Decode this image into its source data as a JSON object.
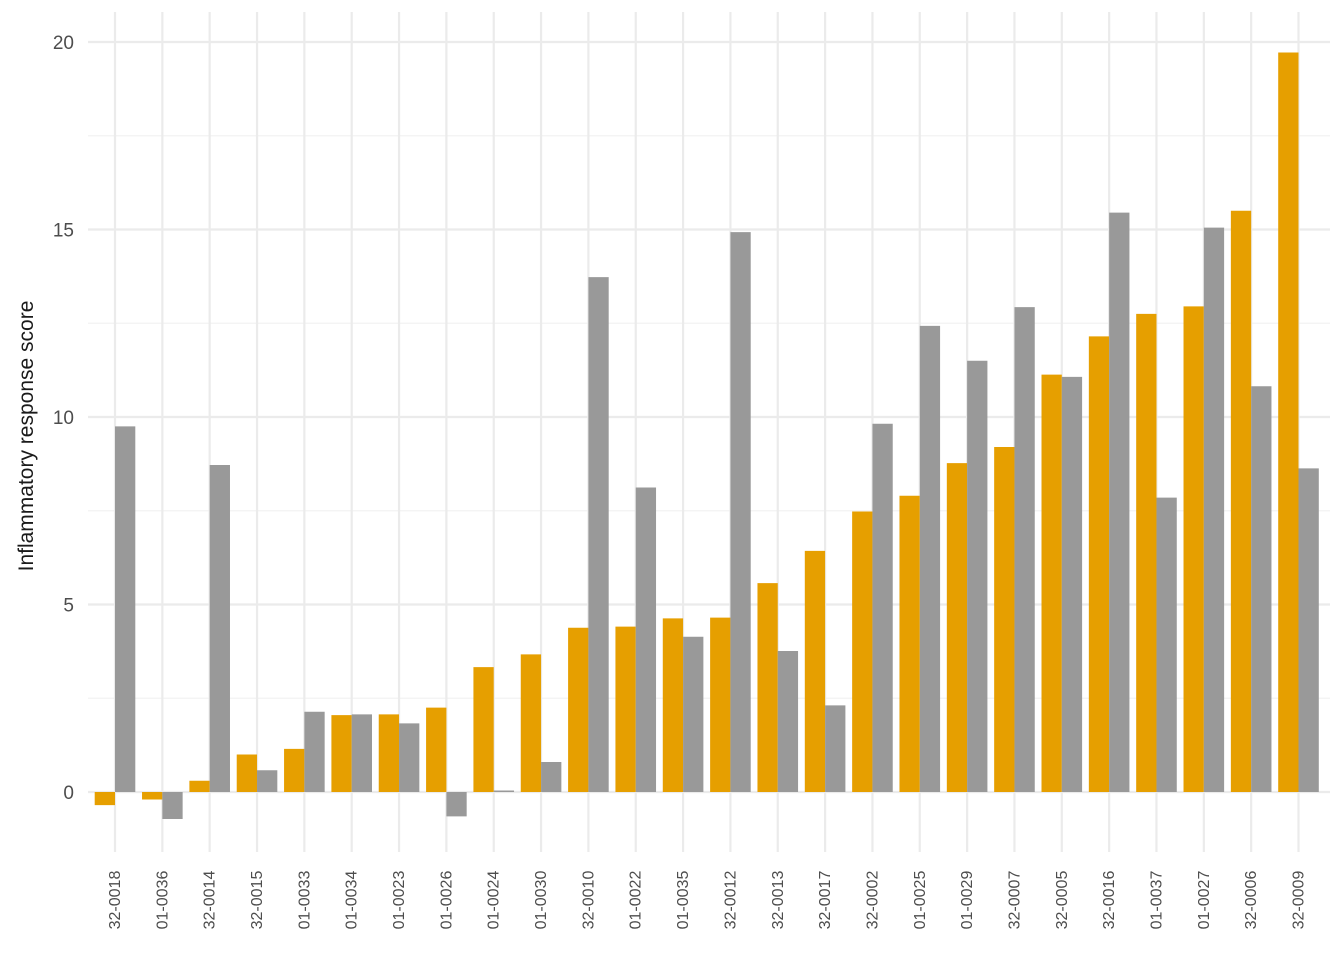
{
  "chart_data": {
    "type": "bar",
    "title": "",
    "xlabel": "",
    "ylabel": "Inflammatory response score",
    "ylim": [
      -1.9,
      20.8
    ],
    "y_ticks": [
      0,
      5,
      10,
      15,
      20
    ],
    "grid": true,
    "legend": "none",
    "categories": [
      "32-0018",
      "01-0036",
      "32-0014",
      "32-0015",
      "01-0033",
      "01-0034",
      "01-0023",
      "01-0026",
      "01-0024",
      "01-0030",
      "32-0010",
      "01-0022",
      "01-0035",
      "32-0012",
      "32-0013",
      "32-0017",
      "32-0002",
      "01-0025",
      "01-0029",
      "32-0007",
      "32-0005",
      "32-0016",
      "01-0037",
      "01-0027",
      "32-0006",
      "32-0009"
    ],
    "series": [
      {
        "color": "#E69F00",
        "values": [
          -0.35,
          -0.2,
          0.3,
          1.0,
          1.15,
          2.05,
          2.07,
          2.25,
          3.33,
          3.67,
          4.38,
          4.41,
          4.63,
          4.65,
          5.57,
          6.43,
          7.48,
          7.9,
          8.77,
          9.2,
          11.13,
          12.15,
          12.75,
          12.95,
          15.5,
          19.72
        ]
      },
      {
        "color": "#999999",
        "values": [
          9.75,
          -0.72,
          8.72,
          0.58,
          2.14,
          2.07,
          1.83,
          -0.65,
          0.04,
          0.8,
          13.73,
          8.12,
          4.14,
          14.93,
          3.76,
          2.31,
          9.82,
          12.43,
          11.5,
          12.93,
          11.07,
          15.45,
          7.85,
          15.05,
          10.82,
          8.63
        ]
      }
    ]
  }
}
